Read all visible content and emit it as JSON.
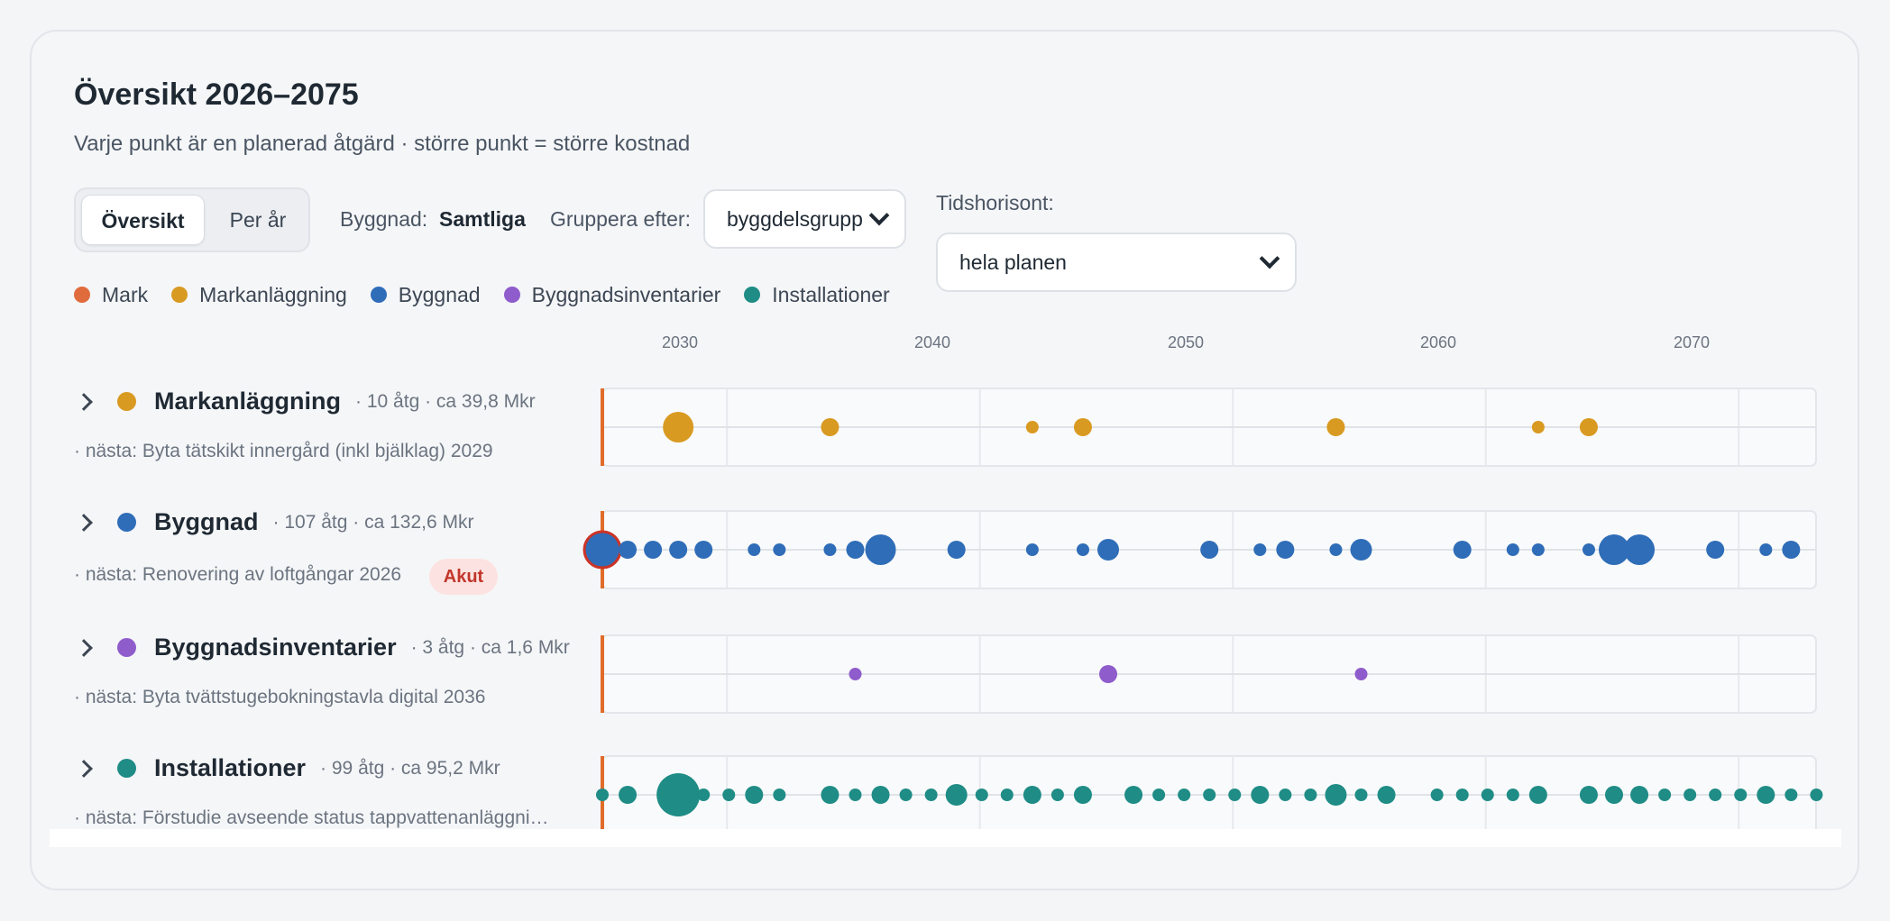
{
  "header": {
    "title": "Översikt 2026–2075",
    "subtitle": "Varje punkt är en planerad åtgärd · större punkt = större kostnad"
  },
  "view_toggle": {
    "options": [
      "Översikt",
      "Per år"
    ],
    "selected": "Översikt"
  },
  "filters": {
    "building_label": "Byggnad:",
    "building_value": "Samtliga",
    "group_label": "Gruppera efter:",
    "group_value": "byggdelsgrupp",
    "horizon_label": "Tidshorisont:",
    "horizon_value": "hela planen"
  },
  "colors": {
    "mark": "#e06c3e",
    "markanlaggning": "#d99a22",
    "byggnad": "#2f6db8",
    "byggnadsinventarier": "#8f5ccc",
    "installationer": "#1f8c86",
    "now_line": "#e06c2a",
    "urgent_ring": "#cc3326"
  },
  "legend": [
    {
      "label": "Mark",
      "color": "#e06c3e"
    },
    {
      "label": "Markanläggning",
      "color": "#d99a22"
    },
    {
      "label": "Byggnad",
      "color": "#2f6db8"
    },
    {
      "label": "Byggnadsinventarier",
      "color": "#8f5ccc"
    },
    {
      "label": "Installationer",
      "color": "#1f8c86"
    }
  ],
  "chart_data": {
    "type": "scatter",
    "x_axis": {
      "min": 2026,
      "max": 2074,
      "ticks": [
        2030,
        2040,
        2050,
        2060,
        2070
      ]
    },
    "current_year": 2026,
    "groups": [
      {
        "name": "Markanläggning",
        "color": "#d99a22",
        "meta": "· 10 åtg · ca 39,8 Mkr",
        "next": "· nästa: Byta tätskikt innergård (inkl bjälklag) 2029",
        "points": [
          {
            "year": 2029,
            "size": "xl"
          },
          {
            "year": 2035,
            "size": "m"
          },
          {
            "year": 2043,
            "size": "s"
          },
          {
            "year": 2045,
            "size": "m"
          },
          {
            "year": 2055,
            "size": "m"
          },
          {
            "year": 2063,
            "size": "s"
          },
          {
            "year": 2065,
            "size": "m"
          }
        ]
      },
      {
        "name": "Byggnad",
        "color": "#2f6db8",
        "meta": "· 107 åtg · ca 132,6 Mkr",
        "next": "· nästa: Renovering av loftgångar 2026",
        "badge": "Akut",
        "points": [
          {
            "year": 2026,
            "size": "xl",
            "urgent": true
          },
          {
            "year": 2027,
            "size": "m"
          },
          {
            "year": 2028,
            "size": "m"
          },
          {
            "year": 2029,
            "size": "m"
          },
          {
            "year": 2030,
            "size": "m"
          },
          {
            "year": 2032,
            "size": "s"
          },
          {
            "year": 2033,
            "size": "s"
          },
          {
            "year": 2035,
            "size": "s"
          },
          {
            "year": 2036,
            "size": "m"
          },
          {
            "year": 2037,
            "size": "xl"
          },
          {
            "year": 2040,
            "size": "m"
          },
          {
            "year": 2043,
            "size": "s"
          },
          {
            "year": 2045,
            "size": "s"
          },
          {
            "year": 2046,
            "size": "l"
          },
          {
            "year": 2050,
            "size": "m"
          },
          {
            "year": 2052,
            "size": "s"
          },
          {
            "year": 2053,
            "size": "m"
          },
          {
            "year": 2055,
            "size": "s"
          },
          {
            "year": 2056,
            "size": "l"
          },
          {
            "year": 2060,
            "size": "m"
          },
          {
            "year": 2062,
            "size": "s"
          },
          {
            "year": 2063,
            "size": "s"
          },
          {
            "year": 2065,
            "size": "s"
          },
          {
            "year": 2066,
            "size": "xl"
          },
          {
            "year": 2067,
            "size": "xl"
          },
          {
            "year": 2070,
            "size": "m"
          },
          {
            "year": 2072,
            "size": "s"
          },
          {
            "year": 2073,
            "size": "m"
          }
        ]
      },
      {
        "name": "Byggnadsinventarier",
        "color": "#8f5ccc",
        "meta": "· 3 åtg · ca 1,6 Mkr",
        "next": "· nästa: Byta tvättstugebokningstavla digital 2036",
        "points": [
          {
            "year": 2036,
            "size": "s"
          },
          {
            "year": 2046,
            "size": "m"
          },
          {
            "year": 2056,
            "size": "s"
          }
        ]
      },
      {
        "name": "Installationer",
        "color": "#1f8c86",
        "meta": "· 99 åtg · ca 95,2 Mkr",
        "next": "· nästa: Förstudie avseende status tappvattenanläggni…",
        "points": [
          {
            "year": 2026,
            "size": "s"
          },
          {
            "year": 2027,
            "size": "m"
          },
          {
            "year": 2029,
            "size": "xxl"
          },
          {
            "year": 2030,
            "size": "s"
          },
          {
            "year": 2031,
            "size": "s"
          },
          {
            "year": 2032,
            "size": "m"
          },
          {
            "year": 2033,
            "size": "s"
          },
          {
            "year": 2035,
            "size": "m"
          },
          {
            "year": 2036,
            "size": "s"
          },
          {
            "year": 2037,
            "size": "m"
          },
          {
            "year": 2038,
            "size": "s"
          },
          {
            "year": 2039,
            "size": "s"
          },
          {
            "year": 2040,
            "size": "l"
          },
          {
            "year": 2041,
            "size": "s"
          },
          {
            "year": 2042,
            "size": "s"
          },
          {
            "year": 2043,
            "size": "m"
          },
          {
            "year": 2044,
            "size": "s"
          },
          {
            "year": 2045,
            "size": "m"
          },
          {
            "year": 2047,
            "size": "m"
          },
          {
            "year": 2048,
            "size": "s"
          },
          {
            "year": 2049,
            "size": "s"
          },
          {
            "year": 2050,
            "size": "s"
          },
          {
            "year": 2051,
            "size": "s"
          },
          {
            "year": 2052,
            "size": "m"
          },
          {
            "year": 2053,
            "size": "s"
          },
          {
            "year": 2054,
            "size": "s"
          },
          {
            "year": 2055,
            "size": "l"
          },
          {
            "year": 2056,
            "size": "s"
          },
          {
            "year": 2057,
            "size": "m"
          },
          {
            "year": 2059,
            "size": "s"
          },
          {
            "year": 2060,
            "size": "s"
          },
          {
            "year": 2061,
            "size": "s"
          },
          {
            "year": 2062,
            "size": "s"
          },
          {
            "year": 2063,
            "size": "m"
          },
          {
            "year": 2065,
            "size": "m"
          },
          {
            "year": 2066,
            "size": "m"
          },
          {
            "year": 2067,
            "size": "m"
          },
          {
            "year": 2068,
            "size": "s"
          },
          {
            "year": 2069,
            "size": "s"
          },
          {
            "year": 2070,
            "size": "s"
          },
          {
            "year": 2071,
            "size": "s"
          },
          {
            "year": 2072,
            "size": "m"
          },
          {
            "year": 2073,
            "size": "s"
          },
          {
            "year": 2074,
            "size": "s"
          }
        ]
      }
    ]
  }
}
